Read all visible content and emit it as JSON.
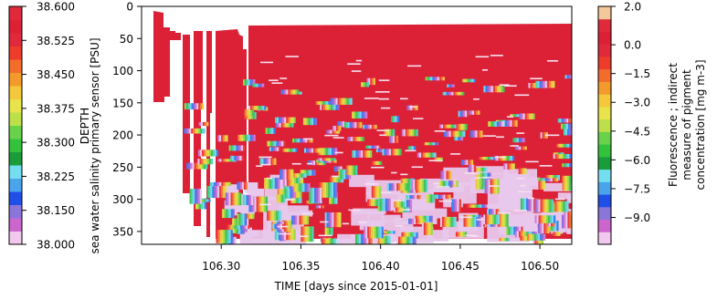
{
  "chart_data": {
    "type": "heatmap",
    "xlabel": "TIME [days since 2015-01-01]",
    "ylabel": "DEPTH",
    "xlim": [
      106.25,
      106.52
    ],
    "ylim": [
      370,
      0
    ],
    "x_ticks": [
      {
        "value": 106.3,
        "label": "106.30"
      },
      {
        "value": 106.35,
        "label": "106.35"
      },
      {
        "value": 106.4,
        "label": "106.40"
      },
      {
        "value": 106.45,
        "label": "106.45"
      },
      {
        "value": 106.5,
        "label": "106.50"
      }
    ],
    "y_ticks": [
      {
        "value": 0,
        "label": "0"
      },
      {
        "value": 50,
        "label": "50"
      },
      {
        "value": 100,
        "label": "100"
      },
      {
        "value": 150,
        "label": "150"
      },
      {
        "value": 200,
        "label": "200"
      },
      {
        "value": 250,
        "label": "250"
      },
      {
        "value": 300,
        "label": "300"
      },
      {
        "value": 350,
        "label": "350"
      }
    ],
    "dominant_color": "#dc2137",
    "low_value_color": "#e8c8ec",
    "data_color_range": [
      38.52,
      38.56
    ],
    "data_colors": [
      "#ee3c3c",
      "#f47d3a",
      "#f5c242",
      "#d9e34a",
      "#9ad84a",
      "#43c05a",
      "#52d3b8",
      "#7ad7f0",
      "#3f7ef0",
      "#8f6cd6",
      "#d07ad8",
      "#e8c8ec"
    ],
    "left_colorbar": {
      "label": "sea water salinity primary sensor [PSU]",
      "ticks": [
        "38.600",
        "38.525",
        "38.450",
        "38.375",
        "38.300",
        "38.225",
        "38.150",
        "38.000"
      ],
      "vmin": 38.0,
      "vmax": 38.6,
      "colors": [
        "#f2c8ee",
        "#cc66cc",
        "#8a76d8",
        "#1f4fe6",
        "#4aa4ec",
        "#74ddf0",
        "#1a9c3a",
        "#33c23c",
        "#68d24a",
        "#bde04a",
        "#e8e24c",
        "#f3c83c",
        "#f39a2c",
        "#f26d2c",
        "#ee3c2a",
        "#e02a3c",
        "#dc2137",
        "#e02a3c"
      ]
    },
    "right_colorbar": {
      "label_lines": [
        "Fluorescence ; indirect",
        "measure of pigment",
        "concentration [mg m-3]"
      ],
      "ticks": [
        {
          "value": 2.0,
          "label": "2.0"
        },
        {
          "value": 0.0,
          "label": "0.0"
        },
        {
          "value": -1.5,
          "label": "−1.5"
        },
        {
          "value": -3.0,
          "label": "−3.0"
        },
        {
          "value": -4.5,
          "label": "−4.5"
        },
        {
          "value": -6.0,
          "label": "−6.0"
        },
        {
          "value": -7.5,
          "label": "−7.5"
        },
        {
          "value": -9.0,
          "label": "−9.0"
        }
      ],
      "vmin": -10.4,
      "vmax": 2.0,
      "colors": [
        "#f2c8ee",
        "#cc66cc",
        "#8a76d8",
        "#1f4fe6",
        "#4aa4ec",
        "#74ddf0",
        "#1a9c3a",
        "#33c23c",
        "#68d24a",
        "#bde04a",
        "#e8e24c",
        "#f3c83c",
        "#f39a2c",
        "#f26d2c",
        "#ee3c2a",
        "#e02a3c",
        "#dc2137",
        "#e02a3c",
        "#f3c89a"
      ]
    }
  }
}
